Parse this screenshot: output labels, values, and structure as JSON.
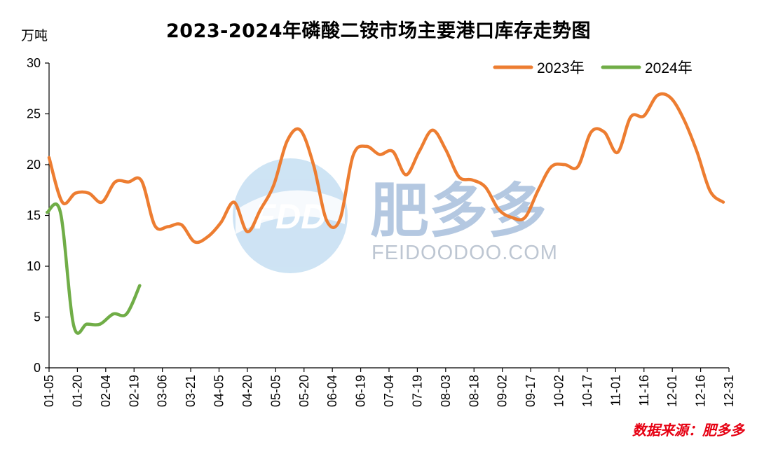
{
  "title": "2023-2024年磷酸二铵市场主要港口库存走势图",
  "unit_label": "万吨",
  "source": "数据来源：肥多多",
  "watermark": {
    "logo_text": "FDD",
    "name": "肥多多",
    "site": "FEIDOODOO.COM"
  },
  "chart_data": {
    "type": "line",
    "ylim": [
      0,
      30
    ],
    "yticks": [
      0,
      5,
      10,
      15,
      20,
      25,
      30
    ],
    "x_ticks": [
      "01-05",
      "01-20",
      "02-04",
      "02-19",
      "03-06",
      "03-21",
      "04-05",
      "04-20",
      "05-05",
      "05-20",
      "06-04",
      "06-19",
      "07-04",
      "07-19",
      "08-03",
      "08-18",
      "09-02",
      "09-17",
      "10-02",
      "10-17",
      "11-01",
      "11-16",
      "12-01",
      "12-16",
      "12-31"
    ],
    "legend_position": "top-right",
    "series": [
      {
        "name": "2023年",
        "color": "#ed7d31",
        "points": [
          [
            "01-05",
            20.7
          ],
          [
            "01-12",
            16.3
          ],
          [
            "01-19",
            17.2
          ],
          [
            "01-26",
            17.2
          ],
          [
            "02-02",
            16.3
          ],
          [
            "02-09",
            18.3
          ],
          [
            "02-16",
            18.3
          ],
          [
            "02-23",
            18.4
          ],
          [
            "03-02",
            14.0
          ],
          [
            "03-09",
            13.9
          ],
          [
            "03-16",
            14.1
          ],
          [
            "03-23",
            12.4
          ],
          [
            "03-30",
            12.9
          ],
          [
            "04-06",
            14.3
          ],
          [
            "04-13",
            16.3
          ],
          [
            "04-20",
            13.4
          ],
          [
            "04-27",
            15.6
          ],
          [
            "05-04",
            18.0
          ],
          [
            "05-11",
            22.3
          ],
          [
            "05-18",
            23.4
          ],
          [
            "05-25",
            20.0
          ],
          [
            "06-01",
            14.5
          ],
          [
            "06-08",
            14.6
          ],
          [
            "06-15",
            20.9
          ],
          [
            "06-22",
            21.8
          ],
          [
            "06-29",
            21.0
          ],
          [
            "07-06",
            21.3
          ],
          [
            "07-13",
            19.0
          ],
          [
            "07-20",
            21.3
          ],
          [
            "07-27",
            23.4
          ],
          [
            "08-03",
            21.5
          ],
          [
            "08-10",
            18.8
          ],
          [
            "08-17",
            18.5
          ],
          [
            "08-24",
            17.8
          ],
          [
            "08-31",
            15.6
          ],
          [
            "09-07",
            14.8
          ],
          [
            "09-14",
            14.8
          ],
          [
            "09-21",
            17.5
          ],
          [
            "09-28",
            19.8
          ],
          [
            "10-05",
            20.0
          ],
          [
            "10-12",
            19.8
          ],
          [
            "10-19",
            23.2
          ],
          [
            "10-26",
            23.2
          ],
          [
            "11-02",
            21.2
          ],
          [
            "11-09",
            24.7
          ],
          [
            "11-16",
            24.8
          ],
          [
            "11-23",
            26.8
          ],
          [
            "11-30",
            26.6
          ],
          [
            "12-07",
            24.5
          ],
          [
            "12-14",
            21.3
          ],
          [
            "12-21",
            17.4
          ],
          [
            "12-28",
            16.3
          ]
        ]
      },
      {
        "name": "2024年",
        "color": "#70ad47",
        "points": [
          [
            "01-04",
            15.3
          ],
          [
            "01-11",
            15.3
          ],
          [
            "01-18",
            4.2
          ],
          [
            "01-25",
            4.3
          ],
          [
            "02-01",
            4.3
          ],
          [
            "02-08",
            5.3
          ],
          [
            "02-15",
            5.3
          ],
          [
            "02-22",
            8.1
          ]
        ]
      }
    ]
  }
}
